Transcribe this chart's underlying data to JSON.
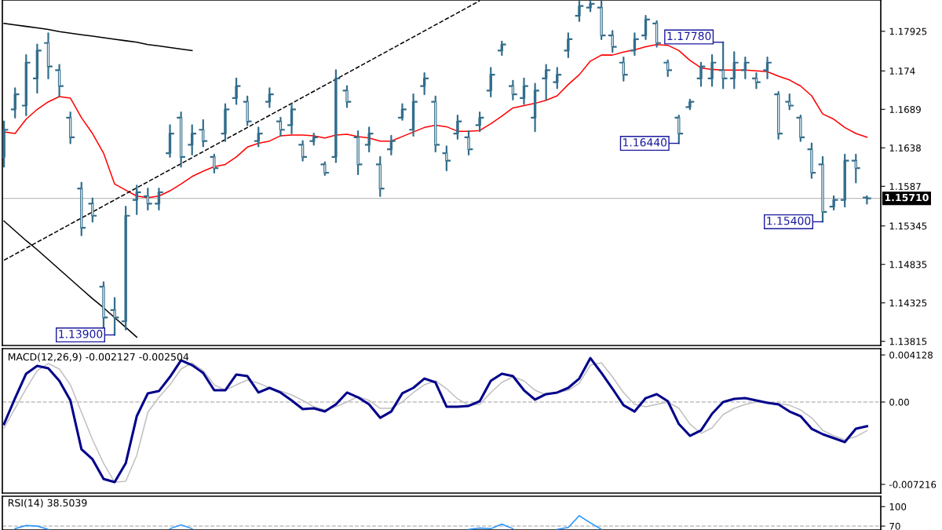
{
  "chart_data": [
    {
      "type": "candlestick",
      "color": "#336e8c",
      "tick_labels": "y",
      "categories": [
        null,
        null,
        null,
        null,
        null,
        null,
        null,
        null,
        null,
        null,
        null,
        null,
        null,
        null,
        null,
        null,
        null,
        null,
        null,
        null,
        null,
        null,
        null,
        null,
        null,
        null,
        null,
        null,
        null,
        null,
        null,
        null,
        null,
        null,
        null,
        null,
        null,
        null,
        null,
        null,
        null,
        null,
        null,
        null,
        null,
        null,
        null,
        null,
        null,
        null,
        null,
        null,
        null,
        null,
        null,
        null,
        null,
        null,
        null,
        null,
        null,
        null,
        null,
        null,
        null,
        null,
        null,
        null,
        null,
        null,
        null,
        null,
        null,
        null,
        null,
        null,
        null,
        null,
        null
      ],
      "ohlc": [
        [
          1.1626,
          1.1673,
          1.1613,
          1.1662
        ],
        [
          1.1689,
          1.1717,
          1.1678,
          1.1709
        ],
        [
          1.1694,
          1.1761,
          1.1681,
          1.1751
        ],
        [
          1.173,
          1.1775,
          1.1711,
          1.1767
        ],
        [
          1.1777,
          1.179,
          1.173,
          1.1746
        ],
        [
          1.1741,
          1.1748,
          1.1706,
          1.172
        ],
        [
          1.1678,
          1.1685,
          1.1644,
          1.1652
        ],
        [
          1.1584,
          1.1592,
          1.1522,
          1.1532
        ],
        [
          1.1564,
          1.1571,
          1.154,
          1.1548
        ],
        [
          1.1454,
          1.146,
          1.14,
          1.1413
        ],
        [
          1.1423,
          1.1439,
          1.139,
          1.1413
        ],
        [
          1.1408,
          1.156,
          1.1397,
          1.1548
        ],
        [
          1.1569,
          1.1588,
          1.155,
          1.1579
        ],
        [
          1.1574,
          1.1584,
          1.1556,
          1.1564
        ],
        [
          1.1564,
          1.1584,
          1.1556,
          1.1579
        ],
        [
          1.1631,
          1.1668,
          1.1626,
          1.1657
        ],
        [
          1.1678,
          1.1685,
          1.1613,
          1.1626
        ],
        [
          1.1642,
          1.1668,
          1.1629,
          1.1657
        ],
        [
          1.1662,
          1.1675,
          1.164,
          1.1647
        ],
        [
          1.1626,
          1.1629,
          1.1605,
          1.1611
        ],
        [
          1.1657,
          1.1696,
          1.1647,
          1.1689
        ],
        [
          1.1704,
          1.173,
          1.1696,
          1.172
        ],
        [
          1.1699,
          1.1706,
          1.1668,
          1.1673
        ],
        [
          1.1647,
          1.1665,
          1.164,
          1.1657
        ],
        [
          1.1699,
          1.1717,
          1.1692,
          1.1709
        ],
        [
          1.1673,
          1.1678,
          1.1654,
          1.1662
        ],
        [
          1.1668,
          1.1696,
          1.1657,
          1.1689
        ],
        [
          1.1642,
          1.1647,
          1.1621,
          1.1626
        ],
        [
          1.1647,
          1.1657,
          1.1642,
          1.1652
        ],
        [
          1.1616,
          1.1619,
          1.1602,
          1.1605
        ],
        [
          1.1626,
          1.1741,
          1.1619,
          1.173
        ],
        [
          1.1714,
          1.172,
          1.1692,
          1.1699
        ],
        [
          1.1652,
          1.166,
          1.1603,
          1.1616
        ],
        [
          1.1642,
          1.1665,
          1.1633,
          1.1657
        ],
        [
          1.1616,
          1.1626,
          1.1574,
          1.1584
        ],
        [
          1.1636,
          1.1654,
          1.1629,
          1.1647
        ],
        [
          1.1678,
          1.1696,
          1.1675,
          1.1689
        ],
        [
          1.1662,
          1.1709,
          1.1654,
          1.1699
        ],
        [
          1.172,
          1.1737,
          1.1709,
          1.173
        ],
        [
          1.1699,
          1.1706,
          1.1633,
          1.1642
        ],
        [
          1.1631,
          1.164,
          1.1608,
          1.1621
        ],
        [
          1.1657,
          1.1681,
          1.165,
          1.1673
        ],
        [
          1.1652,
          1.166,
          1.1629,
          1.1636
        ],
        [
          1.1668,
          1.1685,
          1.166,
          1.1678
        ],
        [
          1.1714,
          1.1744,
          1.1706,
          1.1735
        ],
        [
          1.1767,
          1.1779,
          1.1761,
          1.1775
        ],
        [
          1.172,
          1.1727,
          1.1702,
          1.1709
        ],
        [
          1.1704,
          1.173,
          1.1696,
          1.172
        ],
        [
          1.1678,
          1.1723,
          1.166,
          1.1714
        ],
        [
          1.173,
          1.1748,
          1.1702,
          1.1741
        ],
        [
          1.1725,
          1.1744,
          1.1717,
          1.1735
        ],
        [
          1.1767,
          1.179,
          1.1758,
          1.1782
        ],
        [
          1.1813,
          1.1832,
          1.1806,
          1.1826
        ],
        [
          1.1824,
          1.1832,
          1.1819,
          1.1829
        ],
        [
          1.1824,
          1.1832,
          1.1782,
          1.1787
        ],
        [
          1.1787,
          1.1793,
          1.1765,
          1.1772
        ],
        [
          1.1751,
          1.1758,
          1.1727,
          1.1735
        ],
        [
          1.1767,
          1.179,
          1.1761,
          1.1782
        ],
        [
          1.1787,
          1.1813,
          1.1782,
          1.1808
        ],
        [
          1.1803,
          1.1806,
          1.1772,
          1.1777
        ],
        [
          1.1751,
          1.1754,
          1.1733,
          1.1741
        ],
        [
          1.1678,
          1.1681,
          1.1644,
          1.1657
        ],
        [
          1.1692,
          1.1702,
          1.1689,
          1.1699
        ],
        [
          1.173,
          1.1751,
          1.172,
          1.1746
        ],
        [
          1.173,
          1.1761,
          1.172,
          1.1751
        ],
        [
          1.1741,
          1.1778,
          1.1717,
          1.173
        ],
        [
          1.173,
          1.1765,
          1.1717,
          1.1751
        ],
        [
          1.1741,
          1.1758,
          1.173,
          1.1751
        ],
        [
          1.173,
          1.1737,
          1.1717,
          1.1725
        ],
        [
          1.1741,
          1.1758,
          1.173,
          1.1751
        ],
        [
          1.1709,
          1.1712,
          1.165,
          1.1657
        ],
        [
          1.1699,
          1.1709,
          1.1689,
          1.1694
        ],
        [
          1.1678,
          1.1681,
          1.1647,
          1.1652
        ],
        [
          1.1636,
          1.1644,
          1.1598,
          1.1605
        ],
        [
          1.1616,
          1.1626,
          1.154,
          1.1553
        ],
        [
          1.156,
          1.1574,
          1.1556,
          1.1569
        ],
        [
          1.1569,
          1.1629,
          1.156,
          1.1621
        ],
        [
          1.1621,
          1.1629,
          1.1592,
          1.1611
        ],
        [
          1.1572,
          1.1574,
          1.1564,
          1.1571
        ]
      ],
      "series": [
        {
          "type": "line",
          "color": "#ff0000",
          "line_style": "solid",
          "values": [
            1.1659,
            1.1657,
            1.1676,
            1.1689,
            1.1699,
            1.1706,
            1.1704,
            1.1678,
            1.1657,
            1.1631,
            1.159,
            1.1582,
            1.1574,
            1.1572,
            1.1574,
            1.1581,
            1.159,
            1.16,
            1.1607,
            1.1613,
            1.1616,
            1.1626,
            1.1639,
            1.1644,
            1.1647,
            1.1654,
            1.1655,
            1.1655,
            1.1654,
            1.1651,
            1.1655,
            1.1656,
            1.1653,
            1.1651,
            1.1647,
            1.1647,
            1.1653,
            1.1659,
            1.1665,
            1.1668,
            1.1666,
            1.166,
            1.166,
            1.1661,
            1.167,
            1.168,
            1.1691,
            1.1694,
            1.1697,
            1.1701,
            1.1707,
            1.1722,
            1.1735,
            1.1753,
            1.1761,
            1.1761,
            1.1765,
            1.1768,
            1.1772,
            1.1775,
            1.1774,
            1.1767,
            1.1754,
            1.1744,
            1.1742,
            1.1741,
            1.1741,
            1.1741,
            1.174,
            1.1739,
            1.1733,
            1.1728,
            1.172,
            1.1707,
            1.1683,
            1.1676,
            1.1665,
            1.1657,
            1.1652
          ]
        },
        {
          "type": "line",
          "color": "#000000",
          "line_style": "solid",
          "values": [
            1.1803,
            1.1801,
            1.1799,
            1.1797,
            1.1795,
            1.1792,
            1.179,
            1.1788,
            1.1786,
            1.1784,
            1.1782,
            1.178,
            1.1778,
            1.1775,
            1.1773,
            1.1771,
            1.1769,
            1.1767,
            null,
            null,
            null,
            null,
            null,
            null,
            null,
            null,
            null,
            null,
            null,
            null,
            null,
            null,
            null,
            null,
            null,
            null,
            null,
            null,
            null,
            null,
            null,
            null,
            null,
            null,
            null,
            null,
            null,
            null,
            null,
            null,
            null,
            null,
            null,
            null,
            null,
            null,
            null,
            null,
            null,
            null,
            null,
            null,
            null,
            null,
            null,
            null,
            null,
            null,
            null,
            null,
            null,
            null,
            null,
            null,
            null,
            null,
            null,
            null,
            null
          ]
        },
        {
          "type": "line",
          "color": "#000000",
          "line_style": "solid",
          "values": [
            1.1541,
            1.1528,
            1.1515,
            1.1503,
            1.149,
            1.1477,
            1.1464,
            1.1451,
            1.1438,
            1.1426,
            1.1413,
            1.14,
            1.1387,
            null,
            null,
            null,
            null,
            null,
            null,
            null,
            null,
            null,
            null,
            null,
            null,
            null,
            null,
            null,
            null,
            null,
            null,
            null,
            null,
            null,
            null,
            null,
            null,
            null,
            null,
            null,
            null,
            null,
            null,
            null,
            null,
            null,
            null,
            null,
            null,
            null,
            null,
            null,
            null,
            null,
            null,
            null,
            null,
            null,
            null,
            null,
            null,
            null,
            null,
            null,
            null,
            null,
            null,
            null,
            null,
            null,
            null,
            null,
            null,
            null,
            null,
            null,
            null,
            null,
            null
          ]
        },
        {
          "type": "line",
          "color": "#000000",
          "line_style": "dashed",
          "values": [
            1.1489,
            1.1497,
            1.1505,
            1.1513,
            1.1521,
            1.1529,
            1.1537,
            1.1545,
            1.1553,
            1.1561,
            1.1569,
            1.1577,
            1.1585,
            1.1593,
            1.1601,
            1.1609,
            1.1617,
            1.1625,
            1.1633,
            1.1641,
            1.1649,
            1.1657,
            1.1665,
            1.1673,
            1.1681,
            1.1689,
            1.1697,
            1.1705,
            1.1713,
            1.1721,
            1.1729,
            1.1737,
            1.1745,
            1.1753,
            1.1761,
            1.1769,
            1.1777,
            1.1785,
            1.1793,
            1.1801,
            1.1809,
            1.1817,
            1.1825,
            1.1833,
            null,
            null,
            null,
            null,
            null,
            null,
            null,
            null,
            null,
            null,
            null,
            null,
            null,
            null,
            null,
            null,
            null,
            null,
            null,
            null,
            null,
            null,
            null,
            null,
            null,
            null,
            null,
            null,
            null,
            null,
            null,
            null,
            null,
            null,
            null
          ]
        }
      ],
      "ylim": [
        1.1376,
        1.1834
      ],
      "yticks": [
        1.17925,
        1.174,
        1.1689,
        1.1638,
        1.1587,
        1.15345,
        1.14835,
        1.14325,
        1.13815
      ],
      "ref_lines": [
        {
          "axis": "y",
          "value": 1.1571,
          "label": "1.15710",
          "color": "#c0c0c0",
          "line_style": "solid"
        }
      ],
      "annotations": [
        "1.13900",
        "1.17780",
        "1.16440",
        "1.15400"
      ]
    },
    {
      "type": "line",
      "title": "MACD(12,26,9) -0.002127 -0.002504",
      "tick_labels": "y",
      "categories": [
        null,
        null,
        null,
        null,
        null,
        null,
        null,
        null,
        null,
        null,
        null,
        null,
        null,
        null,
        null,
        null,
        null,
        null,
        null,
        null,
        null,
        null,
        null,
        null,
        null,
        null,
        null,
        null,
        null,
        null,
        null,
        null,
        null,
        null,
        null,
        null,
        null,
        null,
        null,
        null,
        null,
        null,
        null,
        null,
        null,
        null,
        null,
        null,
        null,
        null,
        null,
        null,
        null,
        null,
        null,
        null,
        null,
        null,
        null,
        null,
        null,
        null,
        null,
        null,
        null,
        null,
        null,
        null,
        null,
        null,
        null,
        null,
        null,
        null,
        null,
        null,
        null,
        null,
        null
      ],
      "series": [
        {
          "color": "#c0c0c0",
          "line_style": "solid",
          "values": [
            -0.00227,
            -0.00055,
            0.00117,
            0.00275,
            0.00337,
            0.00289,
            0.00151,
            -0.00089,
            -0.0033,
            -0.00537,
            -0.00702,
            -0.00695,
            -0.00468,
            -0.00089,
            0.00041,
            0.00151,
            0.00289,
            0.00344,
            0.00275,
            0.00151,
            0.00103,
            0.00151,
            0.00193,
            0.00165,
            0.00124,
            0.00096,
            0.00062,
            0.00014,
            -0.00041,
            -0.00069,
            -0.00041,
            0.0,
            0.00048,
            0.00014,
            -0.00055,
            -0.00055,
            0.0,
            0.00083,
            0.00151,
            0.00186,
            0.00117,
            0.00028,
            -0.00028,
            -0.00021,
            0.00083,
            0.00172,
            0.0022,
            0.00186,
            0.00103,
            0.00062,
            0.00083,
            0.00103,
            0.00165,
            0.00323,
            0.00344,
            0.0022,
            0.00083,
            -0.00021,
            -0.00041,
            -0.00021,
            0.0,
            -0.00055,
            -0.00193,
            -0.00275,
            -0.00227,
            -0.0011,
            -0.00055,
            -0.00021,
            0.0,
            0.0,
            -0.00014,
            -0.00028,
            -0.00069,
            -0.00138,
            -0.00248,
            -0.00296,
            -0.0033,
            -0.00303,
            -0.002504
          ]
        },
        {
          "color": "#00008b",
          "line_style": "solid",
          "values": [
            -0.00193,
            0.00034,
            0.00248,
            0.00316,
            0.00296,
            0.00186,
            0.00014,
            -0.00413,
            -0.00502,
            -0.00674,
            -0.00702,
            -0.00537,
            -0.00124,
            0.00076,
            0.00096,
            0.0022,
            0.00365,
            0.00323,
            0.00255,
            0.00103,
            0.00103,
            0.00241,
            0.00227,
            0.00083,
            0.00124,
            0.00083,
            0.00014,
            -0.00062,
            -0.00055,
            -0.00083,
            -0.00021,
            0.00083,
            0.00041,
            -0.00021,
            -0.00138,
            -0.00083,
            0.00076,
            0.00124,
            0.00206,
            0.00172,
            -0.00041,
            -0.00041,
            -0.00034,
            7e-05,
            0.00186,
            0.00248,
            0.00227,
            0.00103,
            0.00021,
            0.00069,
            0.00083,
            0.00124,
            0.00206,
            0.00385,
            0.00255,
            0.00117,
            -0.00028,
            -0.00083,
            0.00034,
            0.00069,
            7e-05,
            -0.00193,
            -0.00296,
            -0.00248,
            -0.00103,
            0.0,
            0.00028,
            0.00034,
            0.00014,
            -7e-05,
            -0.00021,
            -0.00083,
            -0.00124,
            -0.00234,
            -0.00282,
            -0.00316,
            -0.00351,
            -0.00234,
            -0.002127
          ]
        }
      ],
      "ylim": [
        -0.00798,
        0.00468
      ],
      "yticks": [
        0.004128,
        {
          "value": 0,
          "label": "0.00"
        },
        -0.007216
      ],
      "ref_lines": [
        {
          "axis": "y",
          "value": 0,
          "color": "#c0c0c0",
          "line_style": "dashed"
        }
      ]
    },
    {
      "type": "line",
      "title": "RSI(14) 38.5039",
      "tick_labels": "y",
      "categories": [
        null,
        null,
        null,
        null,
        null,
        null,
        null,
        null,
        null,
        null,
        null,
        null,
        null,
        null,
        null,
        null,
        null,
        null,
        null,
        null,
        null,
        null,
        null,
        null,
        null,
        null,
        null,
        null,
        null,
        null,
        null,
        null,
        null,
        null,
        null,
        null,
        null,
        null,
        null,
        null,
        null,
        null,
        null,
        null,
        null,
        null,
        null,
        null,
        null,
        null,
        null,
        null,
        null,
        null,
        null,
        null,
        null,
        null,
        null,
        null,
        null,
        null,
        null,
        null,
        null,
        null,
        null,
        null,
        null,
        null,
        null,
        null,
        null,
        null,
        null,
        null,
        null,
        null,
        null
      ],
      "series": [
        {
          "color": "#1e90ff",
          "line_style": "solid",
          "values": [
            null,
            66,
            71,
            70,
            65,
            null,
            null,
            null,
            null,
            null,
            null,
            null,
            null,
            null,
            null,
            66,
            72,
            66,
            null,
            null,
            null,
            null,
            null,
            null,
            null,
            null,
            null,
            null,
            null,
            null,
            null,
            null,
            null,
            null,
            null,
            null,
            null,
            null,
            null,
            null,
            null,
            null,
            65,
            67,
            66,
            73,
            66,
            null,
            null,
            null,
            65,
            68,
            86,
            75,
            65,
            null,
            null,
            null,
            null,
            null,
            null,
            null,
            null,
            null,
            null,
            null,
            null,
            null,
            null,
            null,
            null,
            null,
            null,
            null,
            null,
            null,
            null,
            null,
            null
          ]
        }
      ],
      "ylim": [
        64,
        116
      ],
      "yticks": [
        100,
        70
      ],
      "ref_lines": [
        {
          "axis": "y",
          "value": 70,
          "color": "#c0c0c0",
          "line_style": "dashed"
        }
      ]
    }
  ]
}
